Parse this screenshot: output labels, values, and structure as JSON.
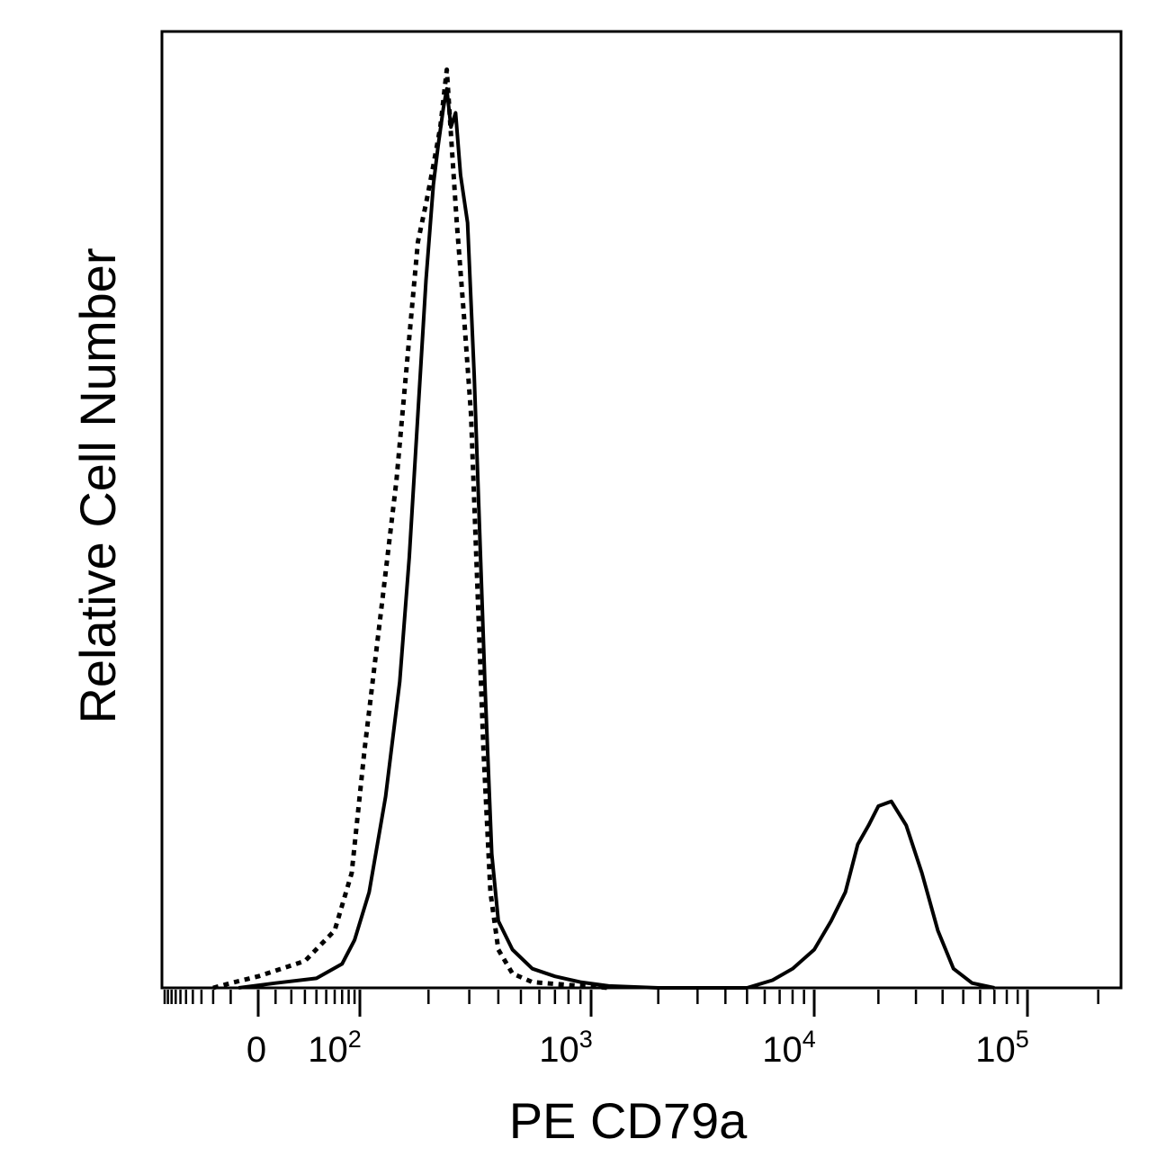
{
  "chart_data": {
    "type": "line",
    "title": "",
    "xlabel": "PE CD79a",
    "ylabel": "Relative Cell Number",
    "x_scale": "biexponential (log above ~10^2, linear near 0)",
    "xlim": [
      -300,
      250000
    ],
    "ylim": [
      0,
      1.0
    ],
    "grid": false,
    "legend": "none",
    "x_tick_labels": [
      {
        "value": 0,
        "base": "0",
        "exp": ""
      },
      {
        "value": 100,
        "base": "10",
        "exp": "2"
      },
      {
        "value": 1000,
        "base": "10",
        "exp": "3"
      },
      {
        "value": 10000,
        "base": "10",
        "exp": "4"
      },
      {
        "value": 100000,
        "base": "10",
        "exp": "5"
      }
    ],
    "series": [
      {
        "style": "solid",
        "points": [
          [
            -20,
            0.0
          ],
          [
            10,
            0.005
          ],
          [
            40,
            0.01
          ],
          [
            70,
            0.025
          ],
          [
            90,
            0.05
          ],
          [
            110,
            0.1
          ],
          [
            130,
            0.2
          ],
          [
            150,
            0.32
          ],
          [
            165,
            0.45
          ],
          [
            180,
            0.6
          ],
          [
            195,
            0.74
          ],
          [
            210,
            0.84
          ],
          [
            220,
            0.88
          ],
          [
            232,
            0.92
          ],
          [
            240,
            0.94
          ],
          [
            250,
            0.9
          ],
          [
            262,
            0.915
          ],
          [
            275,
            0.85
          ],
          [
            295,
            0.8
          ],
          [
            315,
            0.64
          ],
          [
            330,
            0.5
          ],
          [
            350,
            0.32
          ],
          [
            375,
            0.14
          ],
          [
            400,
            0.07
          ],
          [
            460,
            0.04
          ],
          [
            560,
            0.02
          ],
          [
            700,
            0.012
          ],
          [
            900,
            0.006
          ],
          [
            1200,
            0.002
          ],
          [
            2000,
            0.0
          ],
          [
            5000,
            0.0
          ],
          [
            6500,
            0.008
          ],
          [
            8000,
            0.02
          ],
          [
            10000,
            0.04
          ],
          [
            12000,
            0.07
          ],
          [
            14000,
            0.1
          ],
          [
            16000,
            0.15
          ],
          [
            18000,
            0.17
          ],
          [
            20000,
            0.19
          ],
          [
            23000,
            0.195
          ],
          [
            27000,
            0.17
          ],
          [
            32000,
            0.12
          ],
          [
            38000,
            0.06
          ],
          [
            45000,
            0.02
          ],
          [
            55000,
            0.005
          ],
          [
            70000,
            0.0
          ]
        ]
      },
      {
        "style": "dotted",
        "points": [
          [
            -60,
            0.0
          ],
          [
            -30,
            0.005
          ],
          [
            0,
            0.012
          ],
          [
            30,
            0.028
          ],
          [
            60,
            0.06
          ],
          [
            85,
            0.12
          ],
          [
            105,
            0.25
          ],
          [
            125,
            0.4
          ],
          [
            145,
            0.53
          ],
          [
            165,
            0.68
          ],
          [
            180,
            0.78
          ],
          [
            195,
            0.82
          ],
          [
            210,
            0.86
          ],
          [
            225,
            0.9
          ],
          [
            240,
            0.96
          ],
          [
            252,
            0.88
          ],
          [
            265,
            0.8
          ],
          [
            285,
            0.7
          ],
          [
            305,
            0.6
          ],
          [
            325,
            0.42
          ],
          [
            345,
            0.25
          ],
          [
            370,
            0.1
          ],
          [
            400,
            0.04
          ],
          [
            460,
            0.015
          ],
          [
            560,
            0.006
          ],
          [
            800,
            0.003
          ],
          [
            1200,
            0.0
          ]
        ]
      }
    ]
  }
}
